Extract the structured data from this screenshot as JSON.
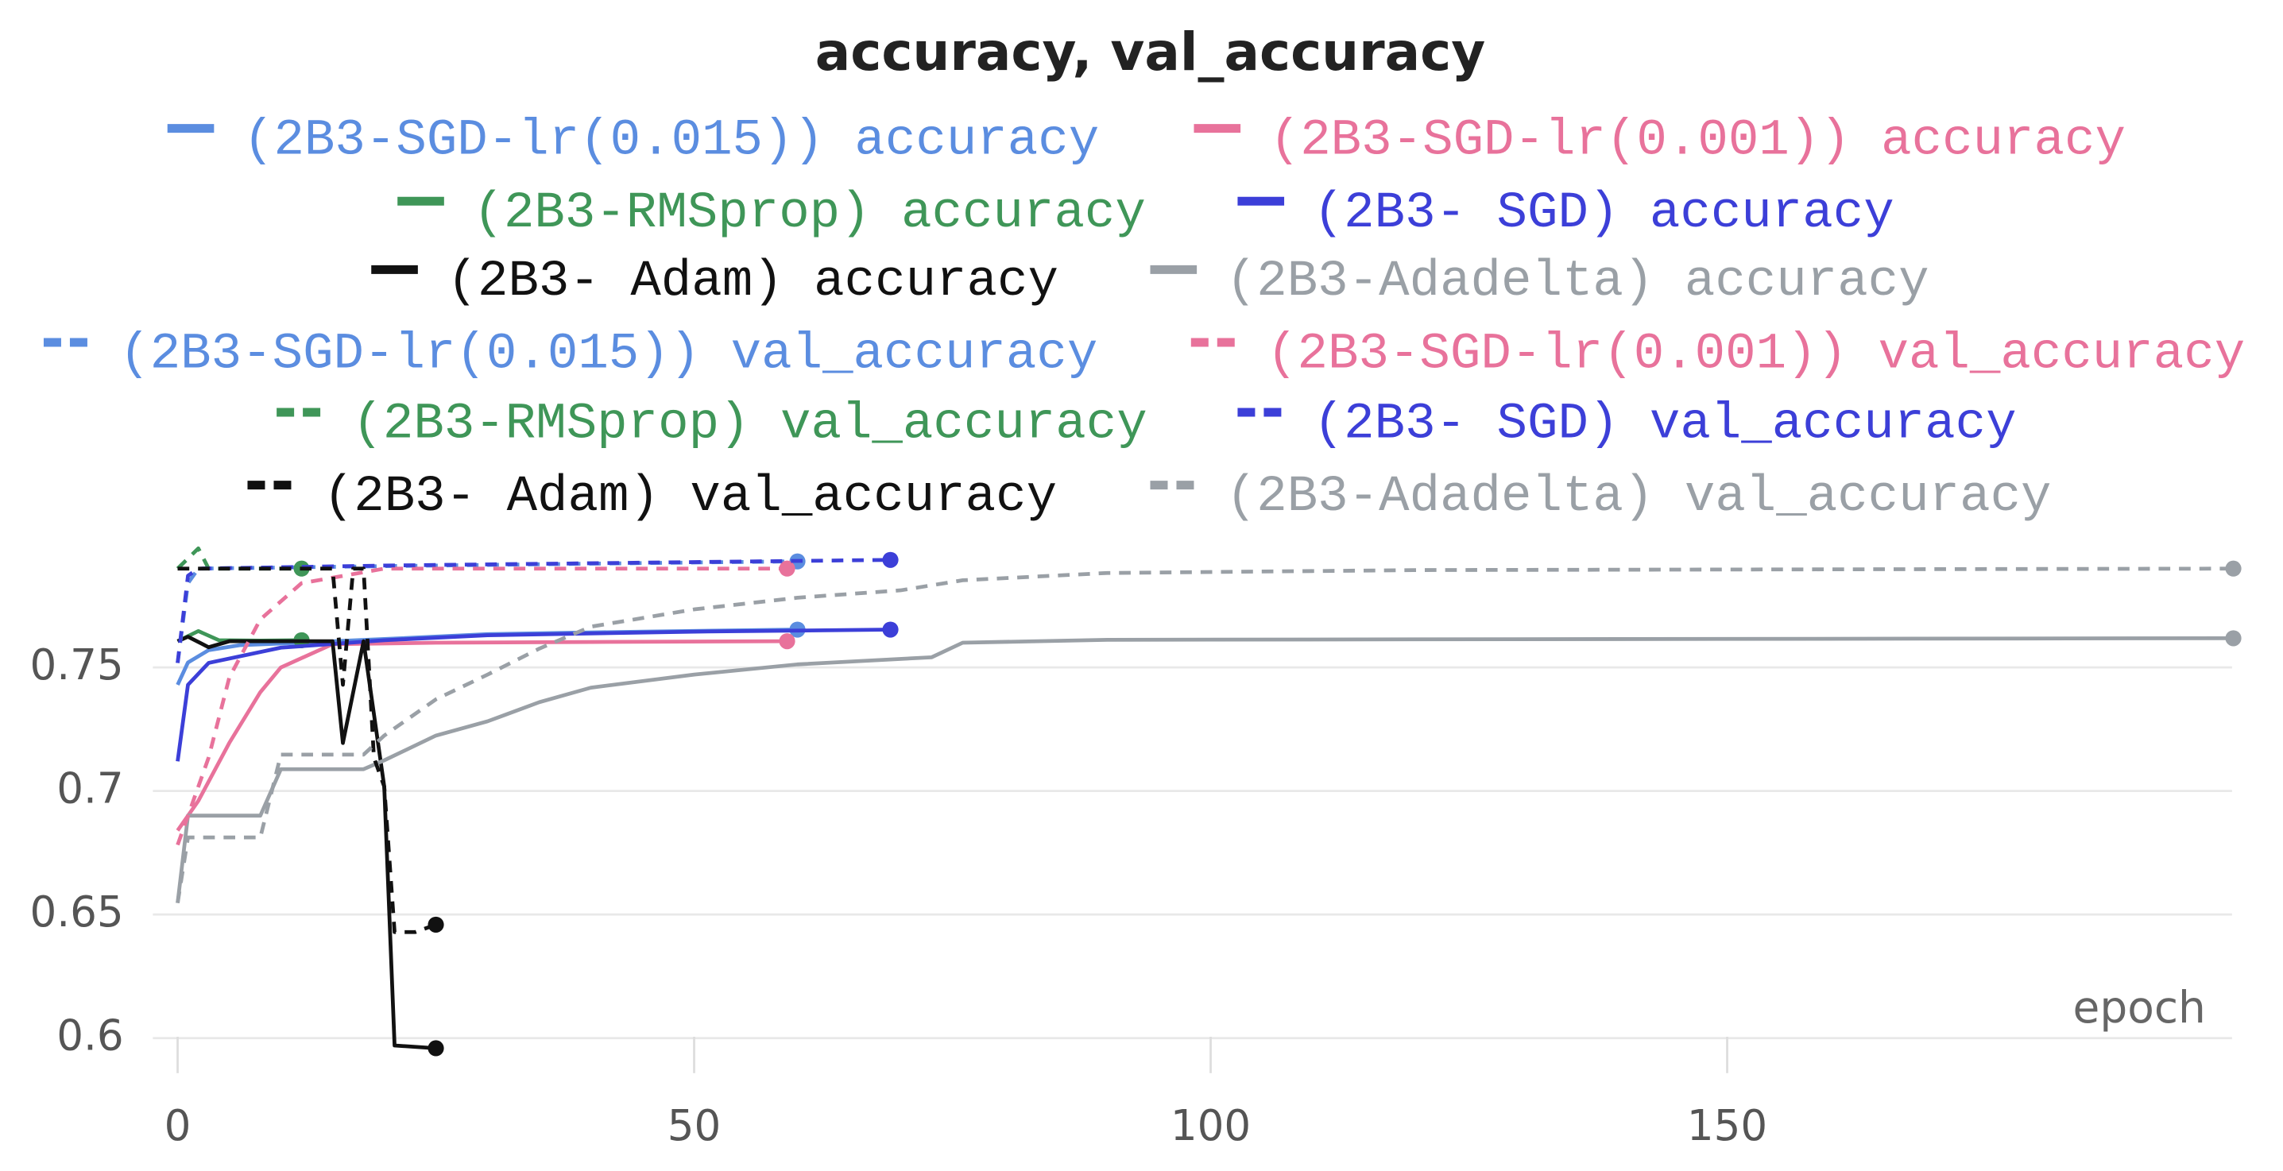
{
  "chart_data": {
    "type": "line",
    "title": "accuracy, val_accuracy",
    "x_label": "epoch",
    "xlim": [
      0,
      200
    ],
    "ylim": [
      0.587,
      0.802
    ],
    "xticks": [
      0,
      50,
      100,
      150
    ],
    "yticks": [
      0.6,
      0.65,
      0.7,
      0.75
    ],
    "grid": true,
    "series": [
      {
        "name": "(2B3-SGD-lr(0.015)) accuracy",
        "color": "#5b8de0",
        "style": "solid",
        "x": [
          0,
          1,
          3,
          6,
          12,
          20,
          30,
          45,
          60
        ],
        "values": [
          0.743,
          0.752,
          0.757,
          0.759,
          0.76,
          0.7615,
          0.7635,
          0.7645,
          0.7653
        ]
      },
      {
        "name": "(2B3-SGD-lr(0.001)) accuracy",
        "color": "#e8729b",
        "style": "solid",
        "x": [
          0,
          2,
          5,
          8,
          10,
          15,
          25,
          40,
          59
        ],
        "values": [
          0.684,
          0.696,
          0.7195,
          0.74,
          0.75,
          0.7594,
          0.76,
          0.7603,
          0.7606
        ]
      },
      {
        "name": "(2B3-RMSprop) accuracy",
        "color": "#3f9658",
        "style": "solid",
        "x": [
          0,
          2,
          4,
          8,
          12
        ],
        "values": [
          0.7606,
          0.7647,
          0.761,
          0.7608,
          0.761
        ]
      },
      {
        "name": "(2B3- SGD) accuracy",
        "color": "#3c3fd8",
        "style": "solid",
        "x": [
          0,
          1,
          3,
          10,
          20,
          30,
          50,
          69
        ],
        "values": [
          0.712,
          0.743,
          0.7518,
          0.758,
          0.761,
          0.763,
          0.7645,
          0.7653
        ]
      },
      {
        "name": "(2B3- Adam) accuracy",
        "color": "#111111",
        "style": "solid",
        "x": [
          0,
          1,
          3,
          5,
          10,
          15,
          16,
          18,
          20,
          21,
          25
        ],
        "values": [
          0.7606,
          0.7624,
          0.7582,
          0.7606,
          0.7606,
          0.7606,
          0.7194,
          0.7606,
          0.7018,
          0.597,
          0.5959
        ]
      },
      {
        "name": "(2B3-Adadelta) accuracy",
        "color": "#9aa0a6",
        "style": "solid",
        "x": [
          0,
          1,
          8,
          10,
          18,
          20,
          25,
          30,
          35,
          40,
          50,
          60,
          73,
          76,
          90,
          199
        ],
        "values": [
          0.6547,
          0.69,
          0.69,
          0.7088,
          0.7088,
          0.7124,
          0.7224,
          0.7282,
          0.7359,
          0.7418,
          0.7471,
          0.7512,
          0.7541,
          0.76,
          0.7612,
          0.7618
        ]
      },
      {
        "name": "(2B3-SGD-lr(0.015)) val_accuracy",
        "color": "#5b8de0",
        "style": "dashed",
        "x": [
          0,
          1,
          2,
          20,
          40,
          60
        ],
        "values": [
          0.7518,
          0.7841,
          0.79,
          0.791,
          0.792,
          0.7929
        ]
      },
      {
        "name": "(2B3-SGD-lr(0.001)) val_accuracy",
        "color": "#e8729b",
        "style": "dashed",
        "x": [
          0,
          3,
          5,
          8,
          12,
          20,
          59
        ],
        "values": [
          0.6782,
          0.7135,
          0.7459,
          0.7694,
          0.7841,
          0.79,
          0.79
        ]
      },
      {
        "name": "(2B3-RMSprop) val_accuracy",
        "color": "#3f9658",
        "style": "dashed",
        "x": [
          0,
          2,
          3,
          12
        ],
        "values": [
          0.79,
          0.7982,
          0.79,
          0.79
        ]
      },
      {
        "name": "(2B3- SGD) val_accuracy",
        "color": "#3c3fd8",
        "style": "dashed",
        "x": [
          0,
          1,
          2,
          20,
          69
        ],
        "values": [
          0.7518,
          0.7871,
          0.79,
          0.7912,
          0.7935
        ]
      },
      {
        "name": "(2B3- Adam) val_accuracy",
        "color": "#111111",
        "style": "dashed",
        "x": [
          0,
          15,
          16,
          17,
          18,
          19,
          20,
          21,
          23,
          25
        ],
        "values": [
          0.79,
          0.79,
          0.743,
          0.79,
          0.79,
          0.7135,
          0.7018,
          0.6429,
          0.6429,
          0.6459
        ]
      },
      {
        "name": "(2B3-Adadelta) val_accuracy",
        "color": "#9aa0a6",
        "style": "dashed",
        "x": [
          0,
          1,
          8,
          10,
          18,
          20,
          25,
          30,
          35,
          40,
          50,
          60,
          70,
          76,
          90,
          120,
          199
        ],
        "values": [
          0.6547,
          0.6812,
          0.6812,
          0.7147,
          0.7147,
          0.7224,
          0.7371,
          0.7471,
          0.7576,
          0.7665,
          0.7735,
          0.7782,
          0.7812,
          0.7853,
          0.7882,
          0.7894,
          0.79
        ]
      }
    ]
  }
}
